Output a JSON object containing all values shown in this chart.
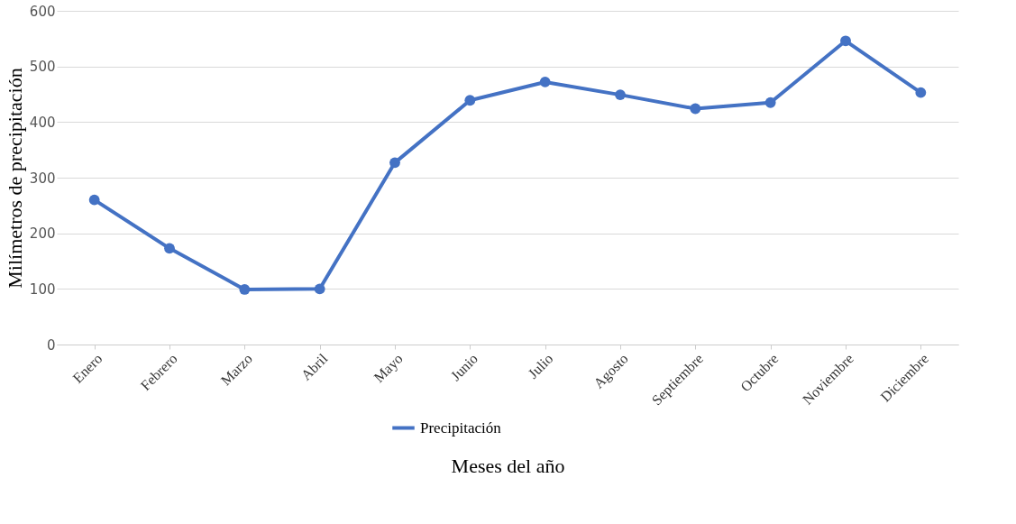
{
  "chart_data": {
    "type": "line",
    "xlabel": "Meses del año",
    "ylabel": "Milímetros de precipitación",
    "categories": [
      "Enero",
      "Febrero",
      "Marzo",
      "Abril",
      "Mayo",
      "Junio",
      "Julio",
      "Agosto",
      "Septiembre",
      "Octubre",
      "Noviembre",
      "Diciembre"
    ],
    "series": [
      {
        "name": "Precipitación",
        "color": "#4472c4",
        "values": [
          260,
          173,
          99,
          100,
          327,
          439,
          472,
          449,
          424,
          435,
          546,
          453
        ]
      }
    ],
    "ylim": [
      0,
      600
    ],
    "yticks": [
      0,
      100,
      200,
      300,
      400,
      500,
      600
    ],
    "grid": "y",
    "legend": "bottom",
    "marker": "circle",
    "line_style": "solid"
  }
}
